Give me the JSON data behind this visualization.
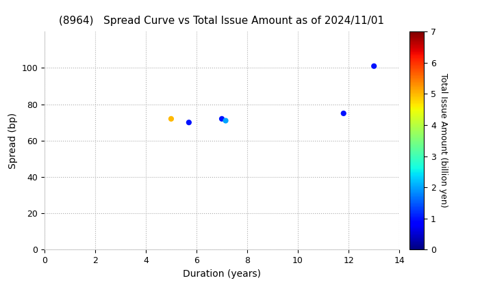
{
  "title": "(8964)   Spread Curve vs Total Issue Amount as of 2024/11/01",
  "xlabel": "Duration (years)",
  "ylabel": "Spread (bp)",
  "colorbar_label": "Total Issue Amount (billion yen)",
  "xlim": [
    0,
    14
  ],
  "ylim": [
    0,
    120
  ],
  "xticks": [
    0,
    2,
    4,
    6,
    8,
    10,
    12,
    14
  ],
  "yticks": [
    0,
    20,
    40,
    60,
    80,
    100
  ],
  "colorbar_min": 0,
  "colorbar_max": 7,
  "colorbar_ticks": [
    0,
    1,
    2,
    3,
    4,
    5,
    6,
    7
  ],
  "points": [
    {
      "duration": 5.0,
      "spread": 72,
      "amount": 5.0
    },
    {
      "duration": 5.7,
      "spread": 70,
      "amount": 1.0
    },
    {
      "duration": 7.0,
      "spread": 72,
      "amount": 1.0
    },
    {
      "duration": 7.15,
      "spread": 71,
      "amount": 2.0
    },
    {
      "duration": 11.8,
      "spread": 75,
      "amount": 1.0
    },
    {
      "duration": 13.0,
      "spread": 101,
      "amount": 1.0
    }
  ],
  "marker_size": 35,
  "background_color": "#ffffff",
  "grid_color": "#aaaaaa",
  "title_fontsize": 11,
  "label_fontsize": 10,
  "tick_fontsize": 9,
  "colorbar_fontsize": 9
}
